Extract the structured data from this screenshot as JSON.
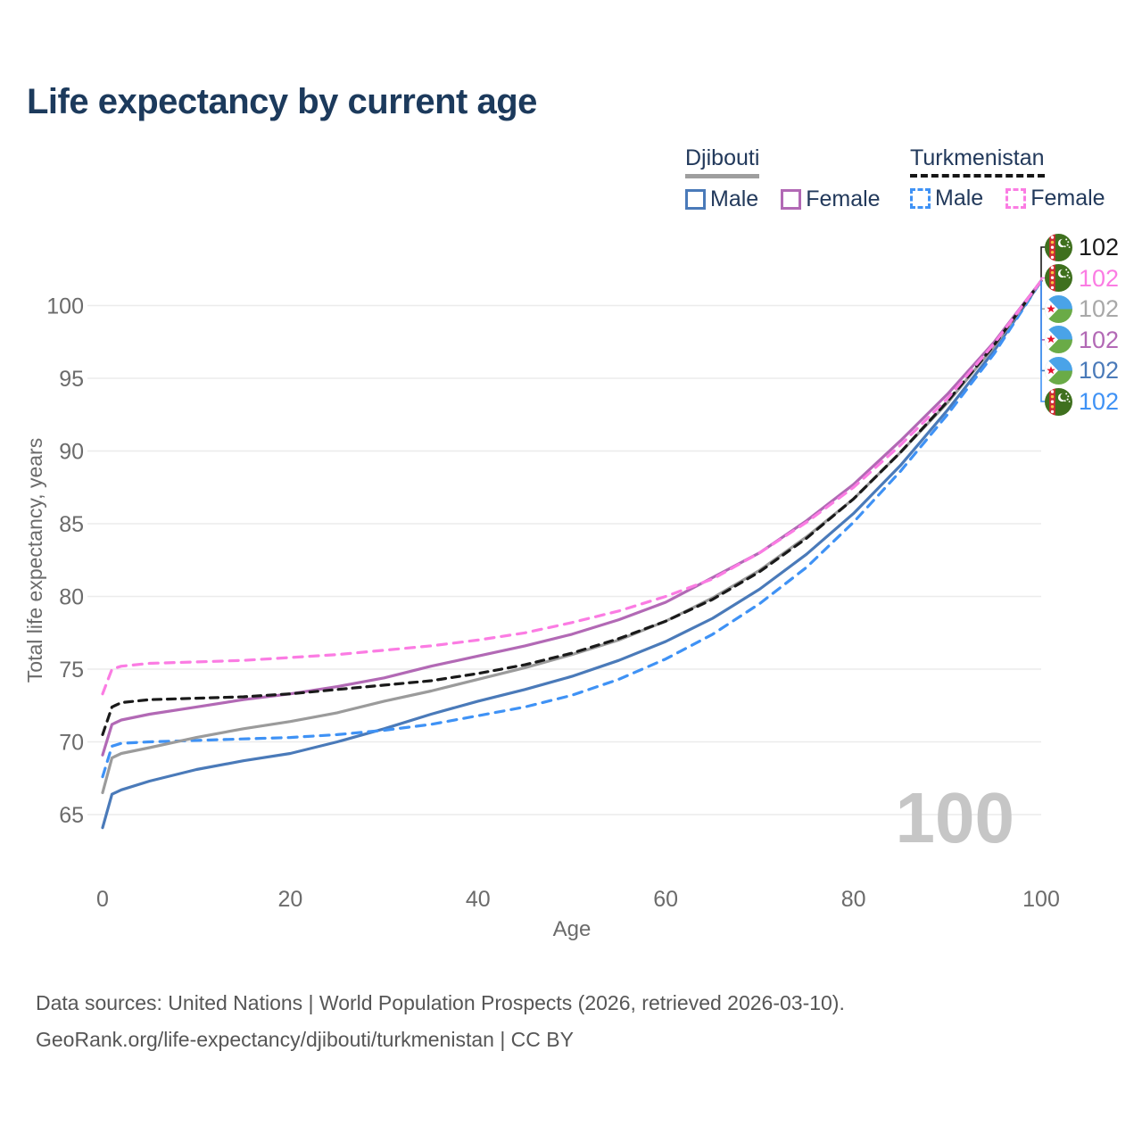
{
  "title": "Life expectancy by current age",
  "legend": {
    "groups": [
      {
        "label": "Djibouti",
        "line_style": "solid",
        "underline_color": "#9e9e9e",
        "items": [
          {
            "label": "Male",
            "color": "#4a7ab9"
          },
          {
            "label": "Female",
            "color": "#b269b5"
          }
        ]
      },
      {
        "label": "Turkmenistan",
        "line_style": "dashed",
        "underline_color": "#161616",
        "items": [
          {
            "label": "Male",
            "color": "#3f92f5"
          },
          {
            "label": "Female",
            "color": "#fb7ce3"
          }
        ]
      }
    ]
  },
  "watermark": "100",
  "chart_data": {
    "type": "line",
    "title": "Life expectancy by current age",
    "xlabel": "Age",
    "ylabel": "Total life expectancy, years",
    "xlim": [
      0,
      100
    ],
    "ylim": [
      63.5,
      102.5
    ],
    "xticks": [
      0,
      20,
      40,
      60,
      80,
      100
    ],
    "yticks": [
      65,
      70,
      75,
      80,
      85,
      90,
      95,
      100
    ],
    "grid": "horizontal",
    "grid_color": "#ebebeb",
    "x": [
      0,
      1,
      2,
      5,
      10,
      15,
      20,
      25,
      30,
      35,
      40,
      45,
      50,
      55,
      60,
      65,
      70,
      75,
      80,
      85,
      90,
      95,
      100
    ],
    "series": [
      {
        "id": "djibouti-male",
        "name": "Djibouti Male",
        "color": "#4a7ab9",
        "dash": null,
        "values": [
          64.1,
          66.4,
          66.7,
          67.3,
          68.1,
          68.7,
          69.2,
          70.0,
          70.9,
          71.9,
          72.8,
          73.6,
          74.5,
          75.6,
          76.9,
          78.5,
          80.5,
          82.9,
          85.7,
          89.0,
          92.8,
          96.9,
          101.7
        ]
      },
      {
        "id": "turkmenistan-male",
        "name": "Turkmenistan Male",
        "color": "#3f92f5",
        "dash": "10 8",
        "values": [
          67.6,
          69.7,
          69.9,
          70.0,
          70.1,
          70.2,
          70.3,
          70.5,
          70.8,
          71.2,
          71.8,
          72.4,
          73.2,
          74.3,
          75.7,
          77.4,
          79.5,
          82.0,
          85.1,
          88.6,
          92.5,
          96.7,
          101.7
        ]
      },
      {
        "id": "djibouti-total",
        "name": "Djibouti",
        "color": "#9b9b9b",
        "dash": null,
        "values": [
          66.5,
          68.9,
          69.2,
          69.6,
          70.3,
          70.9,
          71.4,
          72.0,
          72.8,
          73.5,
          74.3,
          75.1,
          76.0,
          77.0,
          78.3,
          79.9,
          81.8,
          84.1,
          86.7,
          89.9,
          93.3,
          97.2,
          101.7
        ]
      },
      {
        "id": "djibouti-female",
        "name": "Djibouti Female",
        "color": "#b269b5",
        "dash": null,
        "values": [
          69.1,
          71.2,
          71.5,
          71.9,
          72.4,
          72.9,
          73.3,
          73.8,
          74.4,
          75.2,
          75.9,
          76.6,
          77.4,
          78.4,
          79.6,
          81.3,
          83.0,
          85.2,
          87.7,
          90.7,
          93.9,
          97.5,
          101.7
        ]
      },
      {
        "id": "turkmenistan-total",
        "name": "Turkmenistan",
        "color": "#1a1a1a",
        "dash": "9 7",
        "values": [
          70.5,
          72.4,
          72.7,
          72.9,
          73.0,
          73.1,
          73.3,
          73.6,
          73.9,
          74.2,
          74.7,
          75.3,
          76.1,
          77.1,
          78.3,
          79.8,
          81.7,
          84.0,
          86.7,
          89.9,
          93.4,
          97.3,
          101.7
        ]
      },
      {
        "id": "turkmenistan-female",
        "name": "Turkmenistan Female",
        "color": "#fb7ce3",
        "dash": "10 8",
        "values": [
          73.3,
          75.0,
          75.2,
          75.4,
          75.5,
          75.6,
          75.8,
          76.0,
          76.3,
          76.6,
          77.0,
          77.5,
          78.2,
          79.0,
          80.0,
          81.2,
          83.0,
          85.1,
          87.5,
          90.4,
          93.6,
          97.4,
          101.7
        ]
      }
    ],
    "end_labels": [
      {
        "value": "102",
        "color": "#1a1a1a",
        "flag": "flag-turkmenistan",
        "series": "turkmenistan-total"
      },
      {
        "value": "102",
        "color": "#fb7ce3",
        "flag": "flag-turkmenistan",
        "series": "turkmenistan-female"
      },
      {
        "value": "102",
        "color": "#a8a8a8",
        "flag": "flag-djibouti",
        "series": "djibouti-total"
      },
      {
        "value": "102",
        "color": "#b269b5",
        "flag": "flag-djibouti",
        "series": "djibouti-female"
      },
      {
        "value": "102",
        "color": "#4a7ab9",
        "flag": "flag-djibouti",
        "series": "djibouti-male"
      },
      {
        "value": "102",
        "color": "#3f92f5",
        "flag": "flag-turkmenistan",
        "series": "turkmenistan-male"
      }
    ],
    "legend_position": "top-right"
  },
  "footer": {
    "line1": "Data sources: United Nations | World Population Prospects (2026, retrieved 2026-03-10).",
    "line2": "GeoRank.org/life-expectancy/djibouti/turkmenistan | CC BY"
  }
}
